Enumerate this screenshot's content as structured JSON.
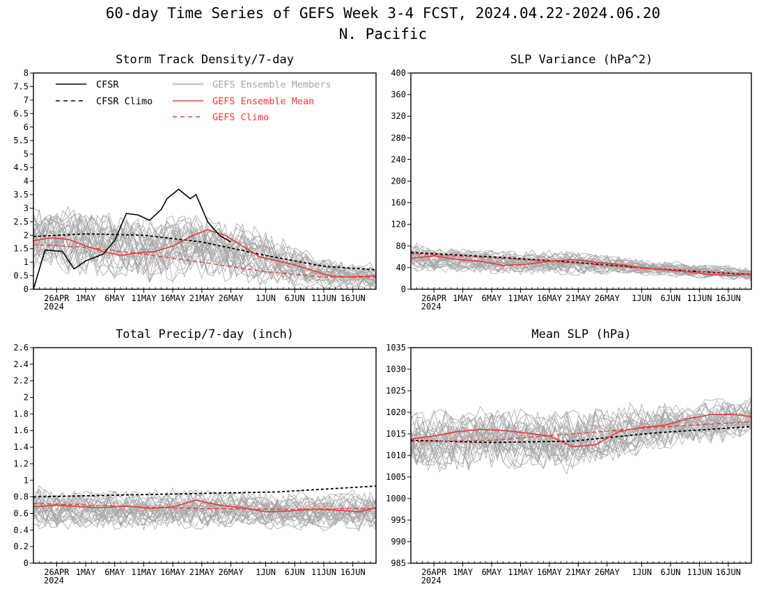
{
  "title_line1": "60-day Time Series of GEFS Week 3-4 FCST, 2024.04.22-2024.06.20",
  "title_line2": "N. Pacific",
  "colors": {
    "cfsr": "#000000",
    "members": "#a6a6a6",
    "ens_mean": "#f03a3a",
    "gefs_climo": "#f03a3a"
  },
  "legend": {
    "cfsr": "CFSR",
    "cfsr_climo": "CFSR Climo",
    "members": "GEFS Ensemble Members",
    "ens_mean": "GEFS Ensemble Mean",
    "gefs_climo": "GEFS Climo"
  },
  "x_axis": {
    "start": "2024-04-22",
    "end": "2024-06-20",
    "ticks": [
      {
        "date": "2024-04-26",
        "label": "26APR",
        "sub": "2024"
      },
      {
        "date": "2024-05-01",
        "label": "1MAY"
      },
      {
        "date": "2024-05-06",
        "label": "6MAY"
      },
      {
        "date": "2024-05-11",
        "label": "11MAY"
      },
      {
        "date": "2024-05-16",
        "label": "16MAY"
      },
      {
        "date": "2024-05-21",
        "label": "21MAY"
      },
      {
        "date": "2024-05-26",
        "label": "26MAY"
      },
      {
        "date": "2024-06-01",
        "label": "1JUN"
      },
      {
        "date": "2024-06-06",
        "label": "6JUN"
      },
      {
        "date": "2024-06-11",
        "label": "11JUN"
      },
      {
        "date": "2024-06-16",
        "label": "16JUN"
      }
    ]
  },
  "chart_data": [
    {
      "id": "storm",
      "type": "line",
      "title": "Storm Track Density/7-day",
      "ylim": [
        0,
        8
      ],
      "yticks": [
        "0",
        "0.5",
        "1",
        "1.5",
        "2",
        "2.5",
        "3",
        "3.5",
        "4",
        "4.5",
        "5",
        "5.5",
        "6",
        "6.5",
        "7",
        "7.5",
        "8"
      ],
      "legend_position": "top-left",
      "members_band": {
        "mean_x": [
          "2024-04-22",
          "2024-04-29",
          "2024-05-06",
          "2024-05-13",
          "2024-05-20",
          "2024-05-27",
          "2024-06-03",
          "2024-06-10",
          "2024-06-17",
          "2024-06-20"
        ],
        "mean_y": [
          1.9,
          1.8,
          1.6,
          1.5,
          1.6,
          1.4,
          1.0,
          0.6,
          0.45,
          0.45
        ],
        "spread": [
          1.5,
          1.5,
          1.5,
          1.5,
          1.6,
          1.4,
          1.1,
          0.8,
          0.6,
          0.7
        ]
      },
      "series": [
        {
          "key": "cfsr_climo",
          "x": [
            "2024-04-22",
            "2024-05-01",
            "2024-05-11",
            "2024-05-21",
            "2024-06-01",
            "2024-06-11",
            "2024-06-20"
          ],
          "y": [
            1.95,
            2.05,
            2.0,
            1.75,
            1.25,
            0.85,
            0.72
          ]
        },
        {
          "key": "gefs_climo",
          "x": [
            "2024-04-22",
            "2024-05-01",
            "2024-05-11",
            "2024-05-21",
            "2024-06-01",
            "2024-06-11",
            "2024-06-20"
          ],
          "y": [
            1.65,
            1.55,
            1.3,
            1.0,
            0.65,
            0.45,
            0.45
          ]
        },
        {
          "key": "ens_mean",
          "x": [
            "2024-04-22",
            "2024-04-25",
            "2024-04-28",
            "2024-05-01",
            "2024-05-04",
            "2024-05-07",
            "2024-05-10",
            "2024-05-13",
            "2024-05-16",
            "2024-05-19",
            "2024-05-22",
            "2024-05-25",
            "2024-05-28",
            "2024-05-31",
            "2024-06-03",
            "2024-06-06",
            "2024-06-09",
            "2024-06-12",
            "2024-06-15",
            "2024-06-20"
          ],
          "y": [
            1.8,
            1.9,
            1.85,
            1.6,
            1.4,
            1.25,
            1.35,
            1.4,
            1.6,
            1.95,
            2.2,
            2.0,
            1.6,
            1.2,
            1.05,
            0.9,
            0.7,
            0.5,
            0.45,
            0.5
          ]
        },
        {
          "key": "cfsr",
          "x": [
            "2024-04-22",
            "2024-04-24",
            "2024-04-27",
            "2024-04-29",
            "2024-05-01",
            "2024-05-04",
            "2024-05-06",
            "2024-05-08",
            "2024-05-10",
            "2024-05-12",
            "2024-05-14",
            "2024-05-15",
            "2024-05-17",
            "2024-05-19",
            "2024-05-20",
            "2024-05-22",
            "2024-05-24",
            "2024-05-26"
          ],
          "y": [
            0,
            1.45,
            1.4,
            0.75,
            1.05,
            1.3,
            1.8,
            2.8,
            2.75,
            2.55,
            2.95,
            3.35,
            3.7,
            3.35,
            3.5,
            2.5,
            2.0,
            1.75
          ]
        }
      ]
    },
    {
      "id": "slpvar",
      "type": "line",
      "title": "SLP Variance (hPa^2)",
      "ylim": [
        0,
        400
      ],
      "yticks": [
        "0",
        "40",
        "80",
        "120",
        "160",
        "200",
        "240",
        "280",
        "320",
        "360",
        "400"
      ],
      "members_band": {
        "mean_x": [
          "2024-04-22",
          "2024-05-06",
          "2024-05-20",
          "2024-06-03",
          "2024-06-20"
        ],
        "mean_y": [
          60,
          52,
          50,
          40,
          28
        ],
        "spread": [
          30,
          28,
          28,
          18,
          15
        ]
      },
      "series": [
        {
          "key": "cfsr_climo",
          "x": [
            "2024-04-22",
            "2024-05-06",
            "2024-05-20",
            "2024-06-03",
            "2024-06-20"
          ],
          "y": [
            68,
            60,
            50,
            38,
            27
          ]
        },
        {
          "key": "gefs_climo",
          "x": [
            "2024-04-22",
            "2024-05-06",
            "2024-05-20",
            "2024-06-03",
            "2024-06-20"
          ],
          "y": [
            66,
            58,
            49,
            37,
            28
          ]
        },
        {
          "key": "ens_mean",
          "x": [
            "2024-04-22",
            "2024-04-26",
            "2024-04-30",
            "2024-05-04",
            "2024-05-08",
            "2024-05-12",
            "2024-05-16",
            "2024-05-20",
            "2024-05-24",
            "2024-05-28",
            "2024-06-01",
            "2024-06-05",
            "2024-06-09",
            "2024-06-13",
            "2024-06-17",
            "2024-06-20"
          ],
          "y": [
            57,
            62,
            55,
            52,
            44,
            46,
            52,
            55,
            50,
            46,
            40,
            36,
            32,
            27,
            26,
            28
          ]
        }
      ]
    },
    {
      "id": "precip",
      "type": "line",
      "title": "Total Precip/7-day (inch)",
      "ylim": [
        0,
        2.6
      ],
      "yticks": [
        "0",
        "0.2",
        "0.4",
        "0.6",
        "0.8",
        "1",
        "1.2",
        "1.4",
        "1.6",
        "1.8",
        "2",
        "2.2",
        "2.4",
        "2.6"
      ],
      "members_band": {
        "mean_x": [
          "2024-04-22",
          "2024-05-06",
          "2024-05-20",
          "2024-06-03",
          "2024-06-20"
        ],
        "mean_y": [
          0.68,
          0.66,
          0.67,
          0.64,
          0.64
        ],
        "spread": [
          0.3,
          0.3,
          0.3,
          0.28,
          0.3
        ]
      },
      "series": [
        {
          "key": "cfsr_climo",
          "x": [
            "2024-04-22",
            "2024-05-06",
            "2024-05-20",
            "2024-06-03",
            "2024-06-20"
          ],
          "y": [
            0.8,
            0.82,
            0.84,
            0.86,
            0.93
          ]
        },
        {
          "key": "gefs_climo",
          "x": [
            "2024-04-22",
            "2024-05-06",
            "2024-05-20",
            "2024-06-03",
            "2024-06-20"
          ],
          "y": [
            0.72,
            0.69,
            0.66,
            0.65,
            0.66
          ]
        },
        {
          "key": "ens_mean",
          "x": [
            "2024-04-22",
            "2024-04-26",
            "2024-04-30",
            "2024-05-04",
            "2024-05-08",
            "2024-05-12",
            "2024-05-16",
            "2024-05-20",
            "2024-05-24",
            "2024-05-28",
            "2024-06-01",
            "2024-06-05",
            "2024-06-09",
            "2024-06-13",
            "2024-06-17",
            "2024-06-20"
          ],
          "y": [
            0.68,
            0.7,
            0.68,
            0.67,
            0.69,
            0.66,
            0.68,
            0.76,
            0.7,
            0.67,
            0.62,
            0.63,
            0.65,
            0.64,
            0.62,
            0.67
          ]
        }
      ]
    },
    {
      "id": "mslp",
      "type": "line",
      "title": "Mean SLP (hPa)",
      "ylim": [
        985,
        1035
      ],
      "yticks": [
        "985",
        "990",
        "995",
        "1000",
        "1005",
        "1010",
        "1015",
        "1020",
        "1025",
        "1030",
        "1035"
      ],
      "members_band": {
        "mean_x": [
          "2024-04-22",
          "2024-05-06",
          "2024-05-20",
          "2024-06-03",
          "2024-06-20"
        ],
        "mean_y": [
          1013.5,
          1014.5,
          1013.5,
          1016.5,
          1019
        ],
        "spread": [
          9,
          9,
          9,
          7,
          6
        ]
      },
      "series": [
        {
          "key": "cfsr_climo",
          "x": [
            "2024-04-22",
            "2024-05-06",
            "2024-05-20",
            "2024-06-03",
            "2024-06-20"
          ],
          "y": [
            1013.5,
            1013.0,
            1013.3,
            1015.2,
            1016.7
          ]
        },
        {
          "key": "gefs_climo",
          "x": [
            "2024-04-22",
            "2024-05-06",
            "2024-05-20",
            "2024-06-03",
            "2024-06-20"
          ],
          "y": [
            1013.2,
            1013.5,
            1015.0,
            1016.5,
            1017.8
          ]
        },
        {
          "key": "ens_mean",
          "x": [
            "2024-04-22",
            "2024-04-26",
            "2024-04-30",
            "2024-05-04",
            "2024-05-08",
            "2024-05-12",
            "2024-05-16",
            "2024-05-20",
            "2024-05-24",
            "2024-05-28",
            "2024-06-01",
            "2024-06-05",
            "2024-06-09",
            "2024-06-13",
            "2024-06-17",
            "2024-06-20"
          ],
          "y": [
            1013.8,
            1014.5,
            1015.5,
            1016.0,
            1015.8,
            1015.2,
            1014.5,
            1012.0,
            1012.5,
            1015.5,
            1016.5,
            1017.0,
            1018.5,
            1019.5,
            1019.5,
            1019.0
          ]
        }
      ]
    }
  ]
}
